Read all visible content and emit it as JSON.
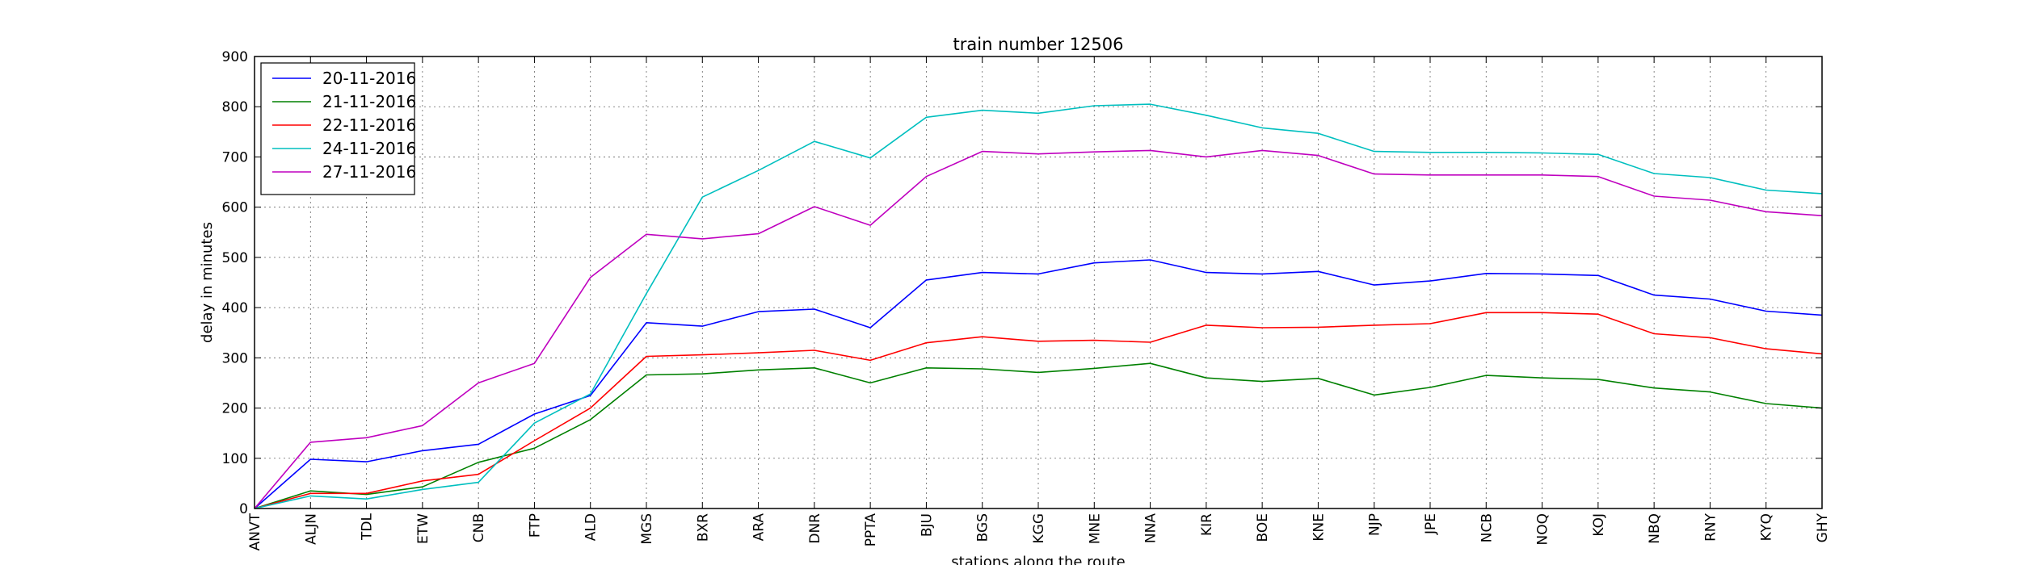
{
  "chart_data": {
    "type": "line",
    "title": "train number 12506",
    "xlabel": "stations along the route",
    "ylabel": "delay in minutes",
    "ylim": [
      0,
      900
    ],
    "yticks": [
      0,
      100,
      200,
      300,
      400,
      500,
      600,
      700,
      800,
      900
    ],
    "grid": true,
    "legend_position": "top-left",
    "categories": [
      "ANVT",
      "ALJN",
      "TDL",
      "ETW",
      "CNB",
      "FTP",
      "ALD",
      "MGS",
      "BXR",
      "ARA",
      "DNR",
      "PPTA",
      "BJU",
      "BGS",
      "KGG",
      "MNE",
      "NNA",
      "KIR",
      "BOE",
      "KNE",
      "NJP",
      "JPE",
      "NCB",
      "NOQ",
      "KOJ",
      "NBQ",
      "RNY",
      "KYQ",
      "GHY"
    ],
    "series": [
      {
        "name": "20-11-2016",
        "color": "#0000ff",
        "values": [
          0,
          98,
          93,
          115,
          128,
          188,
          225,
          370,
          363,
          392,
          397,
          360,
          455,
          470,
          467,
          489,
          495,
          470,
          467,
          472,
          445,
          453,
          468,
          467,
          464,
          425,
          417,
          393,
          385
        ]
      },
      {
        "name": "21-11-2016",
        "color": "#008000",
        "values": [
          0,
          35,
          28,
          43,
          92,
          120,
          177,
          266,
          268,
          276,
          280,
          250,
          280,
          278,
          271,
          279,
          289,
          260,
          253,
          259,
          226,
          241,
          265,
          260,
          257,
          240,
          232,
          209,
          200
        ]
      },
      {
        "name": "22-11-2016",
        "color": "#ff0000",
        "values": [
          0,
          30,
          30,
          55,
          68,
          135,
          200,
          303,
          306,
          310,
          315,
          295,
          330,
          342,
          333,
          335,
          331,
          365,
          360,
          361,
          365,
          368,
          390,
          390,
          387,
          348,
          340,
          318,
          308
        ]
      },
      {
        "name": "24-11-2016",
        "color": "#00bfbf",
        "values": [
          0,
          25,
          19,
          38,
          52,
          170,
          228,
          428,
          620,
          673,
          731,
          698,
          779,
          793,
          787,
          802,
          805,
          783,
          758,
          747,
          711,
          709,
          709,
          708,
          705,
          667,
          659,
          634,
          627
        ]
      },
      {
        "name": "27-11-2016",
        "color": "#bf00bf",
        "values": [
          0,
          132,
          141,
          165,
          250,
          289,
          460,
          546,
          537,
          547,
          601,
          564,
          661,
          711,
          706,
          710,
          713,
          700,
          713,
          703,
          666,
          664,
          664,
          664,
          661,
          622,
          614,
          591,
          583
        ]
      }
    ]
  }
}
